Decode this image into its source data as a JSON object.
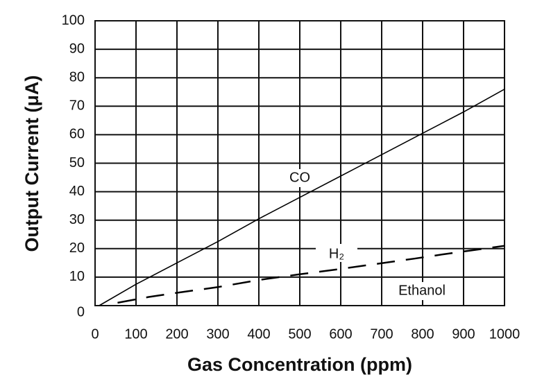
{
  "chart_data": {
    "type": "line",
    "xlabel": "Gas Concentration (ppm)",
    "ylabel": "Output Current (μA)",
    "xlim": [
      0,
      1000
    ],
    "xticks": [
      0,
      100,
      200,
      300,
      400,
      500,
      600,
      700,
      800,
      900,
      1000
    ],
    "ylim": [
      0,
      100
    ],
    "yticks": [
      0,
      10,
      20,
      30,
      40,
      50,
      60,
      70,
      80,
      90,
      100
    ],
    "grid": true,
    "series": [
      {
        "name": "CO",
        "color": "#000000",
        "dashed": false,
        "x": [
          10,
          100,
          200,
          300,
          400,
          500,
          600,
          700,
          800,
          900,
          1000
        ],
        "values": [
          0,
          7.5,
          15,
          22.5,
          30.5,
          38,
          45.5,
          53,
          60.5,
          68,
          76
        ]
      },
      {
        "name": "Ethanol",
        "color": "#000000",
        "dashed": true,
        "x": [
          55,
          130,
          200,
          300,
          400,
          500,
          580,
          680,
          780,
          850,
          1000
        ],
        "values": [
          1,
          3,
          4.5,
          6.5,
          9,
          11,
          12.5,
          14.5,
          16.5,
          18,
          21
        ]
      }
    ],
    "annotations": [
      "H₂"
    ]
  }
}
